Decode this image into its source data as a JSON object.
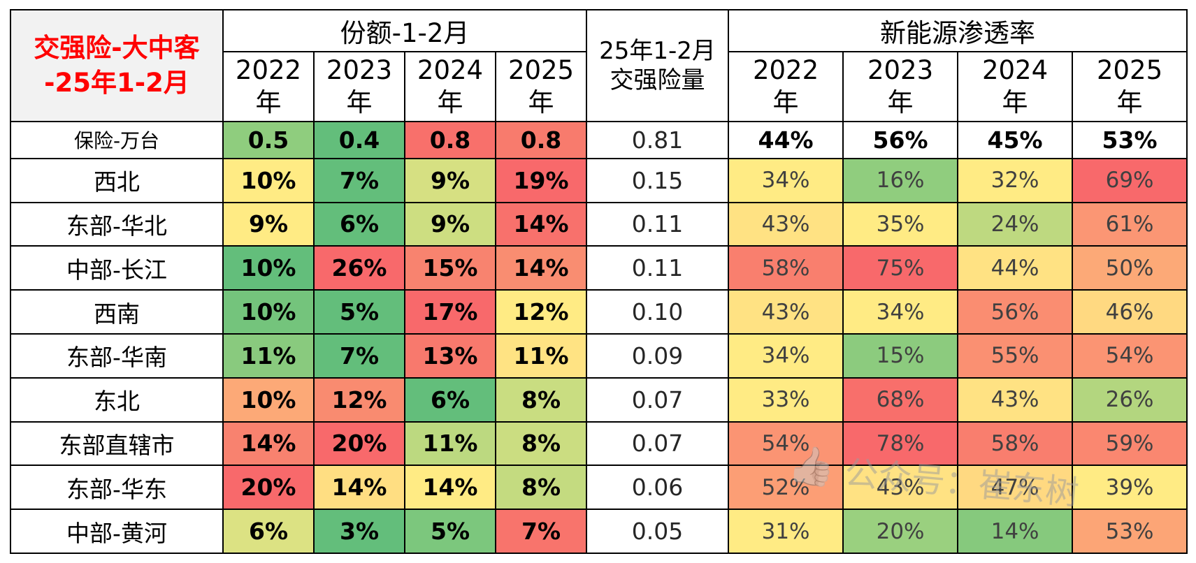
{
  "title": {
    "line1": "交强险-大中客",
    "line2": "-25年1-2月"
  },
  "chart_data": {
    "type": "table",
    "headers": {
      "share_group": "份额-1-2月",
      "volume_line1": "25年1-2月",
      "volume_line2": "交强险量",
      "nev_group": "新能源渗透率",
      "years": [
        "2022",
        "2023",
        "2024",
        "2025"
      ],
      "year_suffix": "年"
    },
    "heat_palette": {
      "low_green": "#63BE7B",
      "mid_yellow": "#FFEB84",
      "high_red": "#F8696B"
    },
    "rows": [
      {
        "label": "保险-万台",
        "share": [
          "0.5",
          "0.4",
          "0.8",
          "0.8"
        ],
        "share_colors": [
          "#8FCD7E",
          "#63BE7B",
          "#F8706B",
          "#F87B6D"
        ],
        "volume": "0.81",
        "nev": [
          "44%",
          "56%",
          "45%",
          "53%"
        ],
        "nev_colors": [
          "#FFFFFF",
          "#FFFFFF",
          "#FFFFFF",
          "#FFFFFF"
        ]
      },
      {
        "label": "西北",
        "share": [
          "10%",
          "7%",
          "9%",
          "19%"
        ],
        "share_colors": [
          "#FFEB84",
          "#63BE7B",
          "#D6E082",
          "#F8696B"
        ],
        "volume": "0.15",
        "nev": [
          "34%",
          "16%",
          "32%",
          "69%"
        ],
        "nev_colors": [
          "#FFEB84",
          "#90CD7E",
          "#FFEB84",
          "#F8696B"
        ]
      },
      {
        "label": "东部-华北",
        "share": [
          "9%",
          "6%",
          "9%",
          "14%"
        ],
        "share_colors": [
          "#FFEB84",
          "#63BE7B",
          "#CDDE81",
          "#F8716C"
        ],
        "volume": "0.11",
        "nev": [
          "43%",
          "35%",
          "24%",
          "61%"
        ],
        "nev_colors": [
          "#FFE283",
          "#FFEB84",
          "#BED980",
          "#FB9674"
        ]
      },
      {
        "label": "中部-长江",
        "share": [
          "10%",
          "26%",
          "15%",
          "14%"
        ],
        "share_colors": [
          "#63BE7B",
          "#F8696B",
          "#F8836F",
          "#F98D71"
        ],
        "volume": "0.11",
        "nev": [
          "58%",
          "75%",
          "44%",
          "50%"
        ],
        "nev_colors": [
          "#F97F6E",
          "#F8696B",
          "#FFE283",
          "#FCA977"
        ]
      },
      {
        "label": "西南",
        "share": [
          "10%",
          "5%",
          "17%",
          "12%"
        ],
        "share_colors": [
          "#74C47C",
          "#63BE7B",
          "#F8696B",
          "#FFEB84"
        ],
        "volume": "0.10",
        "nev": [
          "43%",
          "34%",
          "56%",
          "46%"
        ],
        "nev_colors": [
          "#FFE283",
          "#FFEB84",
          "#FA8D71",
          "#FFD981"
        ]
      },
      {
        "label": "东部-华南",
        "share": [
          "11%",
          "7%",
          "13%",
          "11%"
        ],
        "share_colors": [
          "#89CA7E",
          "#63BE7B",
          "#F8796D",
          "#FFE383"
        ],
        "volume": "0.09",
        "nev": [
          "34%",
          "15%",
          "55%",
          "54%"
        ],
        "nev_colors": [
          "#FFEB84",
          "#8CCB7E",
          "#FA9072",
          "#FB9473"
        ]
      },
      {
        "label": "东北",
        "share": [
          "10%",
          "12%",
          "6%",
          "8%"
        ],
        "share_colors": [
          "#FCA977",
          "#F98B70",
          "#63BE7B",
          "#C9DD81"
        ],
        "volume": "0.07",
        "nev": [
          "33%",
          "68%",
          "43%",
          "26%"
        ],
        "nev_colors": [
          "#FFEB84",
          "#F86F6B",
          "#FFE283",
          "#B3D67F"
        ]
      },
      {
        "label": "东部直辖市",
        "share": [
          "14%",
          "20%",
          "11%",
          "8%"
        ],
        "share_colors": [
          "#F8826F",
          "#F8696B",
          "#BCD980",
          "#CBDD81"
        ],
        "volume": "0.07",
        "nev": [
          "54%",
          "78%",
          "58%",
          "59%"
        ],
        "nev_colors": [
          "#FB9473",
          "#F8696B",
          "#F97E6E",
          "#FA8770"
        ]
      },
      {
        "label": "东部-华东",
        "share": [
          "20%",
          "14%",
          "14%",
          "8%"
        ],
        "share_colors": [
          "#F8696B",
          "#FFDE82",
          "#FFEB84",
          "#C4DB80"
        ],
        "volume": "0.06",
        "nev": [
          "52%",
          "43%",
          "47%",
          "39%"
        ],
        "nev_colors": [
          "#FC9E75",
          "#FFE283",
          "#FFD981",
          "#FFEB84"
        ]
      },
      {
        "label": "中部-黄河",
        "share": [
          "6%",
          "3%",
          "5%",
          "7%"
        ],
        "share_colors": [
          "#DCE283",
          "#63BE7B",
          "#7CC77D",
          "#F8746C"
        ],
        "volume": "0.05",
        "nev": [
          "31%",
          "20%",
          "14%",
          "53%"
        ],
        "nev_colors": [
          "#FFEB84",
          "#9AD07F",
          "#86C97D",
          "#FCA576"
        ]
      }
    ]
  },
  "watermark": {
    "icon": "thumbs-up-icon",
    "text": "公众号：崔东树"
  }
}
